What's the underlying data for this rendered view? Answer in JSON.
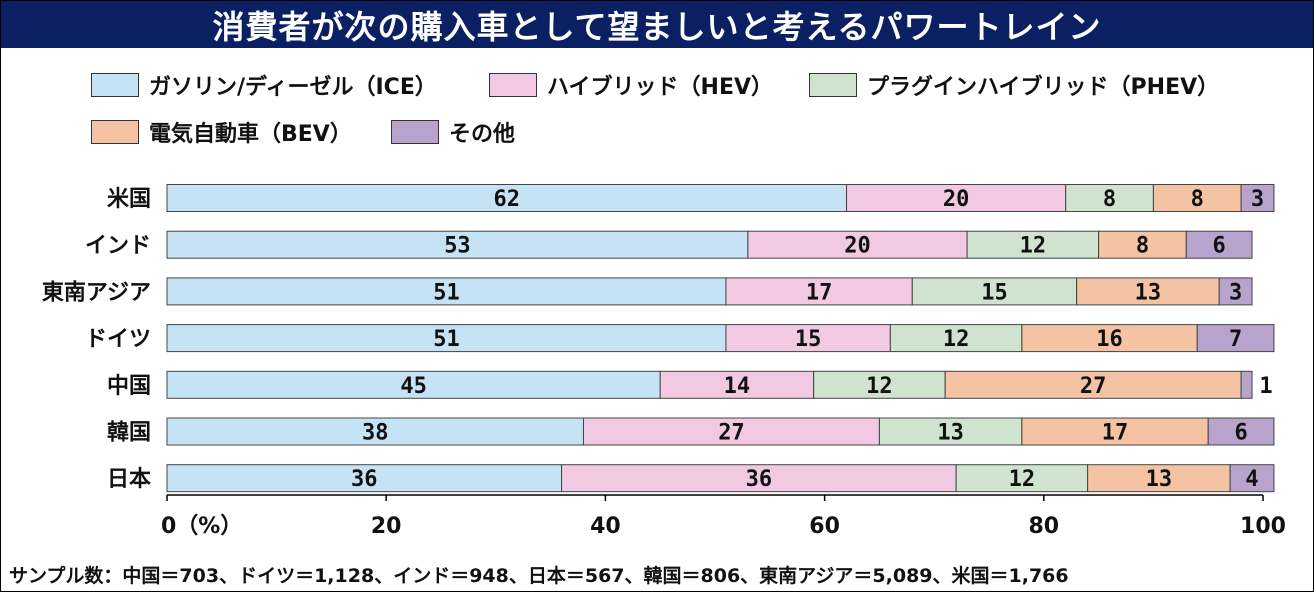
{
  "chart_data": {
    "type": "bar",
    "orientation": "horizontal",
    "stacked": true,
    "title": "消費者が次の購入車として望ましいと考えるパワートレイン",
    "categories": [
      "米国",
      "インド",
      "東南アジア",
      "ドイツ",
      "中国",
      "韓国",
      "日本"
    ],
    "series": [
      {
        "name": "ガソリン/ディーゼル（ICE）",
        "color": "#c6e3f6",
        "values": [
          62,
          53,
          51,
          51,
          45,
          38,
          36
        ]
      },
      {
        "name": "ハイブリッド（HEV）",
        "color": "#f1c9e2",
        "values": [
          20,
          20,
          17,
          15,
          14,
          27,
          36
        ]
      },
      {
        "name": "プラグインハイブリッド（PHEV）",
        "color": "#cfe3cf",
        "values": [
          8,
          12,
          15,
          12,
          12,
          13,
          12
        ]
      },
      {
        "name": "電気自動車（BEV）",
        "color": "#f4c3a3",
        "values": [
          8,
          8,
          13,
          16,
          27,
          17,
          13
        ]
      },
      {
        "name": "その他",
        "color": "#b7a3cb",
        "values": [
          3,
          6,
          3,
          7,
          1,
          6,
          4
        ]
      }
    ],
    "xlim": [
      0,
      100
    ],
    "x_ticks": [
      "0（%）",
      "20",
      "40",
      "60",
      "80",
      "100"
    ],
    "legend_position": "top"
  },
  "footnote": "サンプル数：中国＝703、ドイツ＝1,128、インド＝948、日本＝567、韓国＝806、東南アジア＝5,089、米国＝1,766"
}
